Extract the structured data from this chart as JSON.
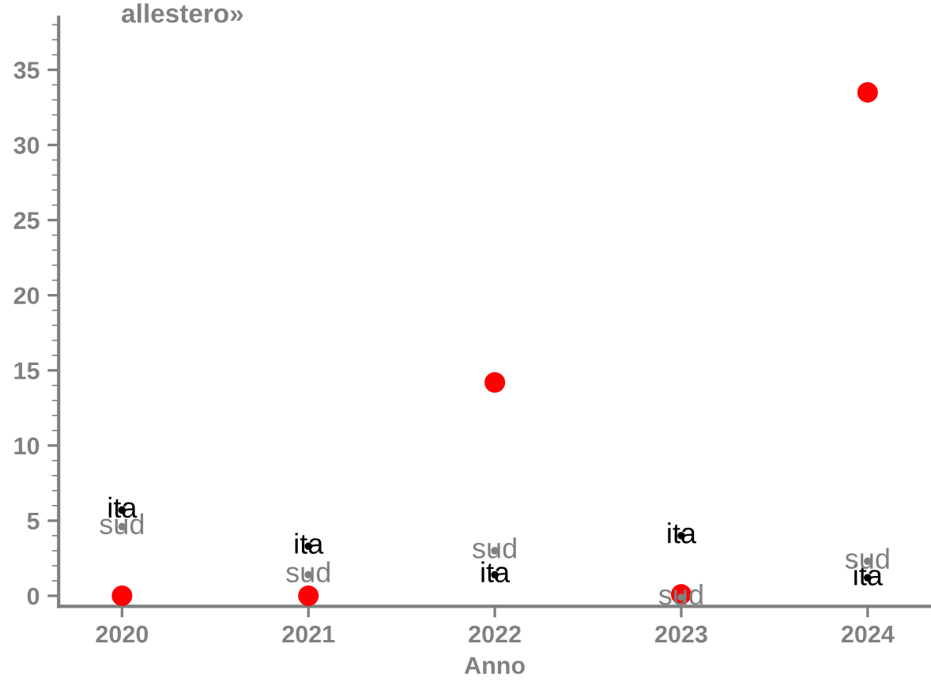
{
  "chart_data": {
    "type": "scatter",
    "title": "allestero»",
    "xlabel": "Anno",
    "x": [
      2020,
      2021,
      2022,
      2023,
      2024
    ],
    "series": [
      {
        "color": "#ff0000",
        "marker": "circle",
        "values": [
          0,
          0,
          14.2,
          0.1,
          33.5
        ]
      },
      {
        "name": "ita",
        "marker": "none",
        "color": "#000000",
        "values": [
          5.7,
          3.3,
          1.4,
          4.0,
          1.2
        ]
      },
      {
        "name": "sud",
        "marker": "none",
        "color": "#808080",
        "values": [
          4.6,
          1.4,
          3.0,
          -0.1,
          2.3
        ]
      }
    ],
    "xlim": [
      2019.66,
      2024.34
    ],
    "xticks": [
      2020,
      2021,
      2022,
      2023,
      2024
    ],
    "ylim": [
      -0.7,
      38.5
    ],
    "yticks": [
      0,
      5,
      10,
      15,
      20,
      25,
      30,
      35
    ],
    "grid": false,
    "legend": false
  }
}
